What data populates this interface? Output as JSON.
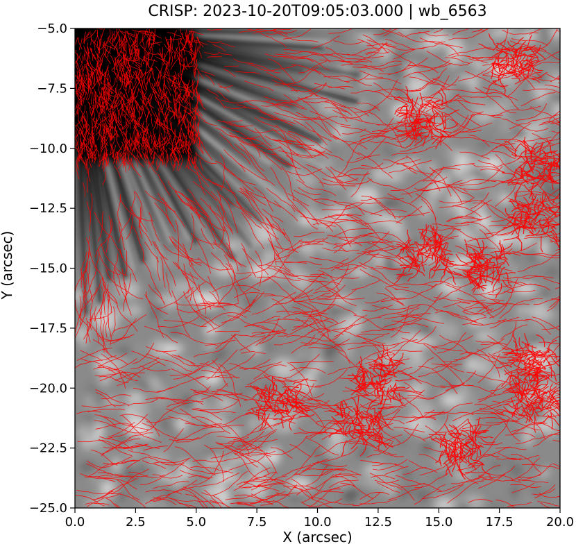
{
  "chart_data": {
    "type": "heatmap",
    "title": "CRISP: 2023-10-20T09:05:03.000 | wb_6563",
    "xlabel": "X (arcsec)",
    "ylabel": "Y (arcsec)",
    "xlim": [
      0.0,
      20.0
    ],
    "ylim": [
      -25.0,
      -5.0
    ],
    "x_ticks": [
      0.0,
      2.5,
      5.0,
      7.5,
      10.0,
      12.5,
      15.0,
      17.5,
      20.0
    ],
    "y_ticks": [
      -5.0,
      -7.5,
      -10.0,
      -12.5,
      -15.0,
      -17.5,
      -20.0,
      -22.5,
      -25.0
    ],
    "x_tick_labels": [
      "0.0",
      "2.5",
      "5.0",
      "7.5",
      "10.0",
      "12.5",
      "15.0",
      "17.5",
      "20.0"
    ],
    "y_tick_labels": [
      "−5.0",
      "−7.5",
      "−10.0",
      "−12.5",
      "−15.0",
      "−17.5",
      "−20.0",
      "−22.5",
      "−25.0"
    ],
    "colormap": "gray",
    "overlay_color": "#ff0000",
    "grid": false
  }
}
